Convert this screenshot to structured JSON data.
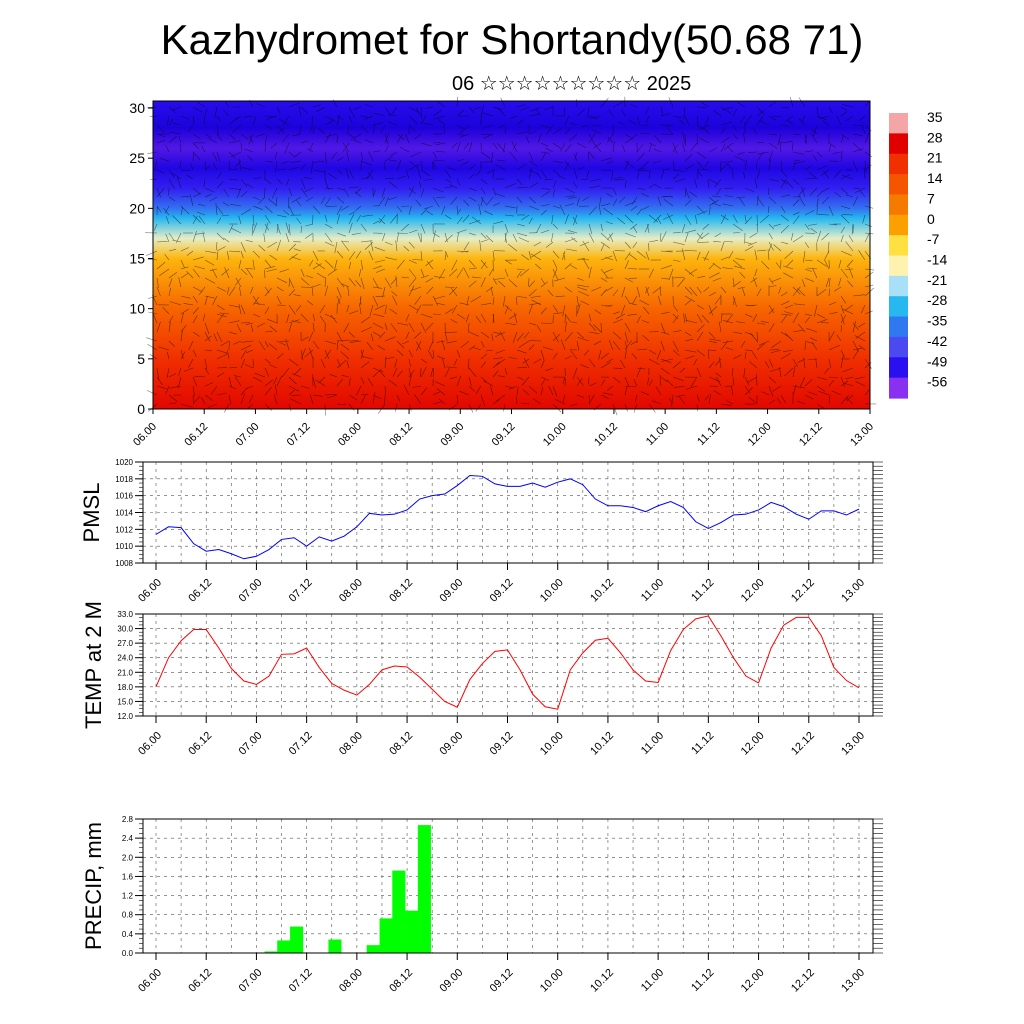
{
  "page": {
    "title": "Kazhydromet for Shortandy(50.68 71)",
    "subtitle": "06 ☆☆☆☆☆☆☆☆☆ 2025"
  },
  "colors": {
    "pmsl_line": "#0000ff",
    "temp_line": "#ff0000",
    "precip_bar": "#00ff00",
    "grid": "#555555"
  },
  "chart_data": [
    {
      "type": "heatmap",
      "title": "",
      "x_tick_labels": [
        "06.00",
        "06.12",
        "07.00",
        "07.12",
        "08.00",
        "08.12",
        "09.00",
        "09.12",
        "10.00",
        "10.12",
        "11.00",
        "11.12",
        "12.00",
        "12.12",
        "13.00"
      ],
      "y_ticks": [
        0,
        5,
        10,
        15,
        20,
        25,
        30
      ],
      "ylim": [
        0,
        30.7
      ],
      "colorbar": {
        "labels": [
          "35",
          "28",
          "21",
          "14",
          "7",
          "0",
          "-7",
          "-14",
          "-21",
          "-28",
          "-35",
          "-42",
          "-49",
          "-56"
        ],
        "colors": [
          "#f4a6a6",
          "#e00000",
          "#f03000",
          "#f55500",
          "#f77a00",
          "#fba000",
          "#ffe040",
          "#fff2b0",
          "#a8e0f8",
          "#28b8f0",
          "#2f78f0",
          "#4a4af0",
          "#2a10f0",
          "#8a30f0"
        ]
      },
      "profile": {
        "height": [
          0,
          5,
          10,
          15,
          17,
          19,
          20,
          22,
          24,
          26,
          28,
          30.7
        ],
        "temperature": [
          30,
          24,
          14,
          0,
          -12,
          -24,
          -32,
          -44,
          -52,
          -58,
          -55,
          -48
        ]
      }
    },
    {
      "type": "line",
      "ylabel": "PMSL",
      "x_tick_labels": [
        "06.00",
        "06.12",
        "07.00",
        "07.12",
        "08.00",
        "08.12",
        "09.00",
        "09.12",
        "10.00",
        "10.12",
        "11.00",
        "11.12",
        "12.00",
        "12.12",
        "13.00"
      ],
      "ylim": [
        1008,
        1020
      ],
      "y_ticks": [
        "1008",
        "1010",
        "1012",
        "1014",
        "1016",
        "1018",
        "1020"
      ],
      "series": [
        {
          "values": [
            1011.4,
            1012.3,
            1012.2,
            1010.3,
            1009.4,
            1009.6,
            1009.1,
            1008.5,
            1008.8,
            1009.6,
            1010.8,
            1011.0,
            1010.0,
            1011.1,
            1010.6,
            1011.2,
            1012.3,
            1013.9,
            1013.7,
            1013.8,
            1014.3,
            1015.6,
            1016.0,
            1016.2,
            1017.2,
            1018.4,
            1018.3,
            1017.4,
            1017.1,
            1017.1,
            1017.5,
            1017.0,
            1017.6,
            1018.0,
            1017.3,
            1015.6,
            1014.8,
            1014.8,
            1014.6,
            1014.1,
            1014.8,
            1015.3,
            1014.6,
            1012.9,
            1012.1,
            1012.8,
            1013.7,
            1013.8,
            1014.3,
            1015.2,
            1014.7,
            1013.8,
            1013.2,
            1014.2,
            1014.2,
            1013.7,
            1014.4
          ]
        }
      ]
    },
    {
      "type": "line",
      "ylabel": "TEMP at 2 M",
      "x_tick_labels": [
        "06.00",
        "06.12",
        "07.00",
        "07.12",
        "08.00",
        "08.12",
        "09.00",
        "09.12",
        "10.00",
        "10.12",
        "11.00",
        "11.12",
        "12.00",
        "12.12",
        "13.00"
      ],
      "ylim": [
        12,
        33
      ],
      "y_ticks": [
        "12.0",
        "15.0",
        "18.0",
        "21.0",
        "24.0",
        "27.0",
        "30.0",
        "33.0"
      ],
      "series": [
        {
          "values": [
            18.0,
            24.0,
            27.5,
            29.8,
            29.8,
            26.0,
            21.8,
            19.2,
            18.5,
            20.2,
            24.7,
            24.8,
            26.0,
            22.0,
            18.7,
            17.3,
            16.3,
            18.5,
            21.5,
            22.3,
            22.1,
            20.0,
            17.5,
            15.0,
            13.8,
            19.5,
            22.8,
            25.3,
            25.6,
            21.5,
            16.5,
            13.9,
            13.4,
            21.5,
            25.0,
            27.6,
            28.0,
            25.0,
            21.5,
            19.2,
            18.9,
            25.5,
            29.8,
            32.0,
            32.6,
            28.5,
            24.0,
            20.2,
            18.8,
            26.0,
            30.7,
            32.3,
            32.3,
            28.5,
            22.0,
            19.3,
            17.8
          ]
        }
      ]
    },
    {
      "type": "bar",
      "ylabel": "PRECIP, mm",
      "x_tick_labels": [
        "06.00",
        "06.12",
        "07.00",
        "07.12",
        "08.00",
        "08.12",
        "09.00",
        "09.12",
        "10.00",
        "10.12",
        "11.00",
        "11.12",
        "12.00",
        "12.12",
        "13.00"
      ],
      "ylim": [
        0,
        2.8
      ],
      "y_ticks": [
        "0.0",
        "0.4",
        "0.8",
        "1.2",
        "1.6",
        "2.0",
        "2.4",
        "2.8"
      ],
      "values": [
        0,
        0,
        0,
        0,
        0,
        0,
        0,
        0,
        0,
        0.03,
        0.26,
        0.55,
        0,
        0,
        0.28,
        0,
        0,
        0.16,
        0.72,
        1.72,
        0.88,
        2.67,
        0,
        0,
        0,
        0,
        0,
        0,
        0,
        0,
        0,
        0,
        0,
        0,
        0,
        0,
        0,
        0,
        0,
        0,
        0,
        0,
        0,
        0,
        0,
        0,
        0,
        0,
        0,
        0,
        0,
        0,
        0,
        0,
        0,
        0
      ]
    }
  ]
}
